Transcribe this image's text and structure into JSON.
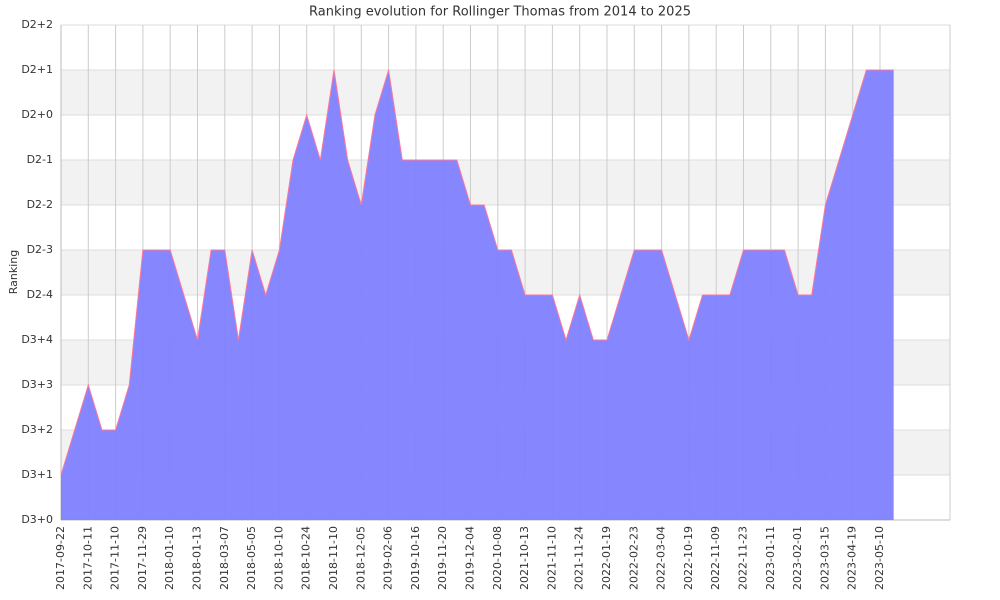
{
  "chart_data": {
    "type": "area",
    "title": "Ranking evolution for Rollinger Thomas from 2014 to 2025",
    "y_label": "Ranking",
    "categories": [
      "2017-09-22",
      null,
      "2017-10-11",
      null,
      "2017-11-10",
      null,
      "2017-11-29",
      null,
      "2018-01-10",
      null,
      "2018-01-13",
      null,
      "2018-03-07",
      null,
      "2018-05-05",
      null,
      "2018-10-10",
      null,
      "2018-10-24",
      null,
      "2018-11-10",
      null,
      "2018-12-05",
      null,
      "2019-02-06",
      null,
      "2019-10-16",
      null,
      "2019-11-20",
      null,
      "2019-12-04",
      null,
      "2020-10-08",
      null,
      "2021-10-13",
      null,
      "2021-11-10",
      null,
      "2021-11-24",
      null,
      "2022-01-19",
      null,
      "2022-02-23",
      null,
      "2022-03-04",
      null,
      "2022-10-19",
      null,
      "2022-11-09",
      null,
      "2022-11-23",
      null,
      "2023-01-11",
      null,
      "2023-02-01",
      null,
      "2023-03-15",
      null,
      "2023-04-19",
      null,
      "2023-05-10",
      null
    ],
    "values": [
      1,
      2,
      3,
      2,
      2,
      3,
      6,
      6,
      6,
      5,
      4,
      6,
      6,
      4,
      6,
      5,
      6,
      8,
      9,
      8,
      10,
      8,
      7,
      9,
      10,
      8,
      8,
      8,
      8,
      8,
      7,
      7,
      6,
      6,
      5,
      5,
      5,
      4,
      5,
      4,
      4,
      5,
      6,
      6,
      6,
      5,
      4,
      5,
      5,
      5,
      6,
      6,
      6,
      6,
      5,
      5,
      7,
      8,
      9,
      10,
      10,
      10
    ],
    "color": "#8080ff",
    "line_color": "#ff7799",
    "ylim": [
      0,
      11
    ],
    "yticks": [
      {
        "value": 0,
        "label": "D3+0"
      },
      {
        "value": 1,
        "label": "D3+1"
      },
      {
        "value": 2,
        "label": "D3+2"
      },
      {
        "value": 3,
        "label": "D3+3"
      },
      {
        "value": 4,
        "label": "D3+4"
      },
      {
        "value": 5,
        "label": "D2-4"
      },
      {
        "value": 6,
        "label": "D2-3"
      },
      {
        "value": 7,
        "label": "D2-2"
      },
      {
        "value": 8,
        "label": "D2-1"
      },
      {
        "value": 9,
        "label": "D2+0"
      },
      {
        "value": 10,
        "label": "D2+1"
      },
      {
        "value": 11,
        "label": "D2+2"
      }
    ],
    "grid": true
  }
}
